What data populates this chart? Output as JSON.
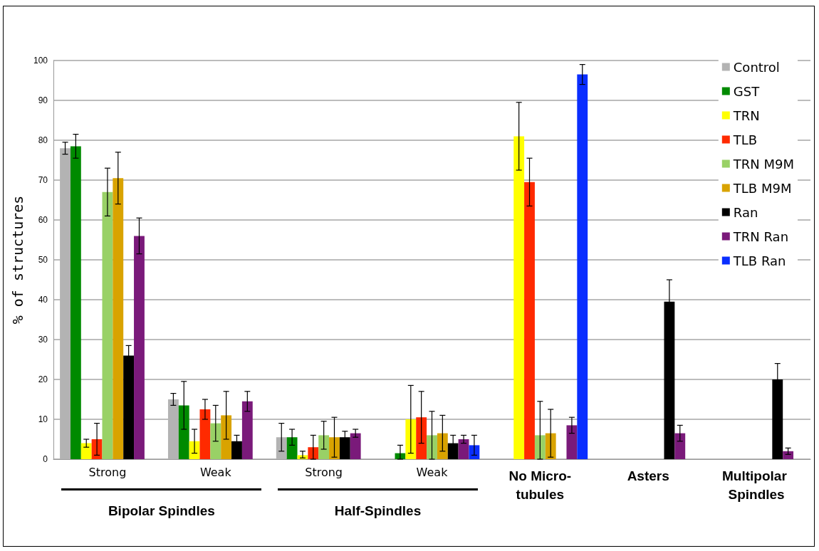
{
  "chart_data": {
    "type": "bar",
    "ylabel": "% of structures",
    "categories": [
      "Strong",
      "Weak",
      "Strong",
      "Weak",
      "No Micro-tubules",
      "Asters",
      "Multipolar Spindles"
    ],
    "series": [
      {
        "name": "Control",
        "color": "#b3b3b3",
        "values": [
          78,
          15,
          5.5,
          0,
          0,
          0,
          0
        ],
        "errors": [
          1.5,
          1.5,
          3.5,
          null,
          null,
          null,
          null
        ]
      },
      {
        "name": "GST",
        "color": "#008a00",
        "values": [
          78.5,
          13.5,
          5.5,
          1.5,
          0,
          0,
          0
        ],
        "errors": [
          3,
          6,
          2,
          [
            0,
            3.5
          ],
          null,
          null,
          null
        ]
      },
      {
        "name": "TRN",
        "color": "#ffff00",
        "values": [
          4,
          4.5,
          1,
          10,
          81,
          0,
          0
        ],
        "errors": [
          1,
          3,
          [
            0.3,
            2
          ],
          8.5,
          8.5,
          null,
          null
        ]
      },
      {
        "name": "TLB",
        "color": "#ff2a00",
        "values": [
          5,
          12.5,
          3,
          10.5,
          69.5,
          0,
          0
        ],
        "errors": [
          4,
          2.5,
          3,
          6.5,
          6,
          null,
          null
        ]
      },
      {
        "name": "TRN M9M",
        "color": "#99d166",
        "values": [
          67,
          9,
          6,
          6,
          6,
          0,
          0
        ],
        "errors": [
          6,
          4.5,
          3.5,
          6,
          [
            0,
            14.5
          ],
          null,
          null
        ]
      },
      {
        "name": "TLB M9M",
        "color": "#d9a300",
        "values": [
          70.5,
          11,
          5.5,
          6.5,
          6.5,
          0,
          0
        ],
        "errors": [
          6.5,
          6,
          5,
          4.5,
          6,
          null,
          null
        ]
      },
      {
        "name": "Ran",
        "color": "#000000",
        "values": [
          26,
          4.5,
          5.5,
          4,
          0,
          39.5,
          20
        ],
        "errors": [
          2.5,
          1.5,
          1.5,
          2,
          null,
          5.5,
          4
        ]
      },
      {
        "name": "TRN Ran",
        "color": "#7a1a7a",
        "values": [
          56,
          14.5,
          6.5,
          5,
          8.5,
          6.5,
          2
        ],
        "errors": [
          4.5,
          2.5,
          1,
          1,
          2,
          2,
          0.8
        ]
      },
      {
        "name": "TLB Ran",
        "color": "#0a2eff",
        "values": [
          0,
          0,
          0,
          3.5,
          96.5,
          0,
          0
        ],
        "errors": [
          null,
          null,
          null,
          2.5,
          2.5,
          null,
          null
        ]
      }
    ],
    "ylim": [
      0,
      100
    ],
    "yticks": [
      0,
      10,
      20,
      30,
      40,
      50,
      60,
      70,
      80,
      90,
      100
    ],
    "grid": "y",
    "legend": "top right",
    "annotations": [
      "Bipolar Spindles",
      "Half-Spindles"
    ]
  }
}
